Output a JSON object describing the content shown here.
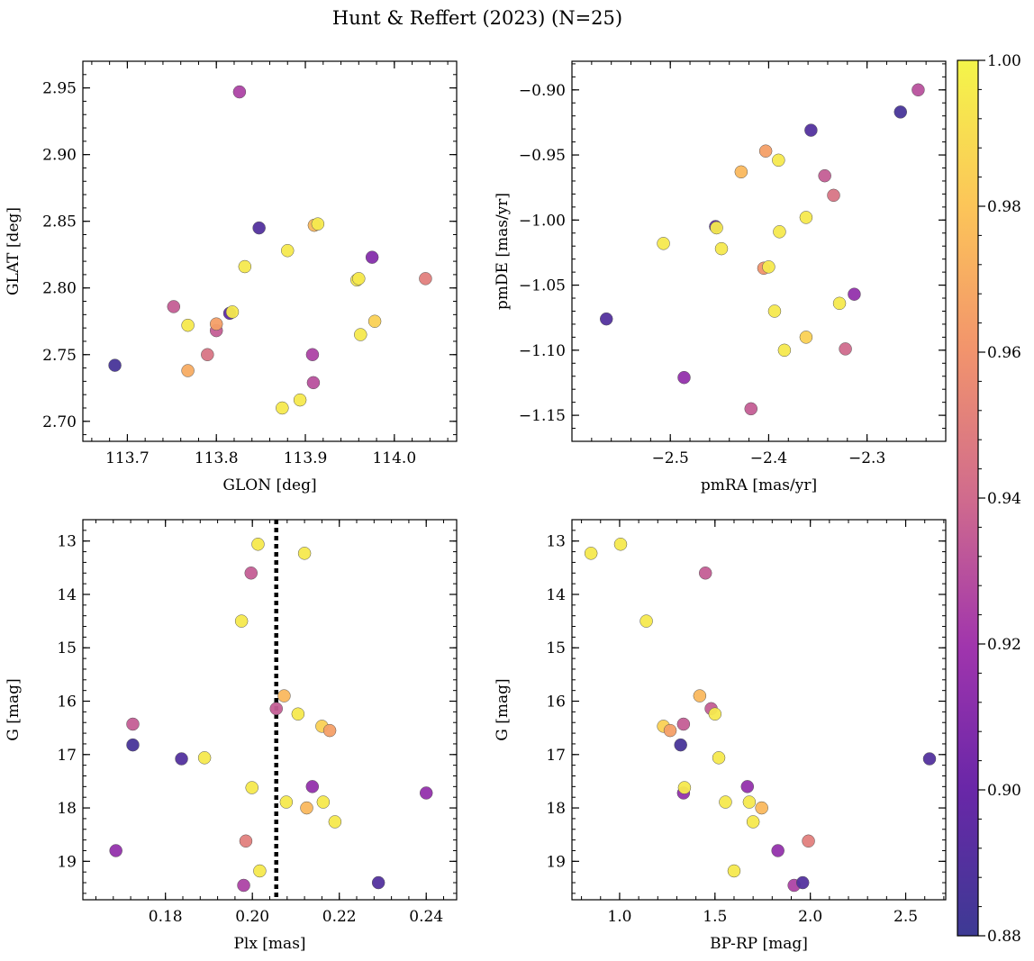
{
  "title": "Hunt & Reffert (2023) (N=25)",
  "colorbar": {
    "min": 0.88,
    "max": 1.0,
    "ticks": [
      0.88,
      0.9,
      0.92,
      0.94,
      0.96,
      0.98,
      1.0
    ],
    "tick_labels": [
      "0.88",
      "0.90",
      "0.92",
      "0.94",
      "0.96",
      "0.98",
      "1.00"
    ],
    "colormap": "plasma"
  },
  "chart_data": [
    {
      "type": "scatter",
      "xlabel": "GLON [deg]",
      "ylabel": "GLAT [deg]",
      "xlim": [
        113.65,
        114.07
      ],
      "ylim": [
        2.685,
        2.97
      ],
      "xticks": [
        113.7,
        113.8,
        113.9,
        114.0
      ],
      "xtick_labels": [
        "113.7",
        "113.8",
        "113.9",
        "114.0"
      ],
      "yticks": [
        2.7,
        2.75,
        2.8,
        2.85,
        2.9,
        2.95
      ],
      "ytick_labels": [
        "2.70",
        "2.75",
        "2.80",
        "2.85",
        "2.90",
        "2.95"
      ],
      "points": [
        {
          "x": 113.686,
          "y": 2.742,
          "c": 0.885
        },
        {
          "x": 113.752,
          "y": 2.786,
          "c": 0.935
        },
        {
          "x": 113.768,
          "y": 2.772,
          "c": 0.995
        },
        {
          "x": 113.768,
          "y": 2.738,
          "c": 0.97
        },
        {
          "x": 113.79,
          "y": 2.75,
          "c": 0.945
        },
        {
          "x": 113.8,
          "y": 2.768,
          "c": 0.935
        },
        {
          "x": 113.8,
          "y": 2.773,
          "c": 0.965
        },
        {
          "x": 113.815,
          "y": 2.781,
          "c": 0.895
        },
        {
          "x": 113.818,
          "y": 2.782,
          "c": 0.995
        },
        {
          "x": 113.826,
          "y": 2.947,
          "c": 0.925
        },
        {
          "x": 113.832,
          "y": 2.816,
          "c": 0.995
        },
        {
          "x": 113.848,
          "y": 2.845,
          "c": 0.89
        },
        {
          "x": 113.874,
          "y": 2.71,
          "c": 0.995
        },
        {
          "x": 113.88,
          "y": 2.828,
          "c": 0.995
        },
        {
          "x": 113.894,
          "y": 2.716,
          "c": 0.995
        },
        {
          "x": 113.908,
          "y": 2.75,
          "c": 0.925
        },
        {
          "x": 113.909,
          "y": 2.729,
          "c": 0.93
        },
        {
          "x": 113.91,
          "y": 2.847,
          "c": 0.975
        },
        {
          "x": 113.914,
          "y": 2.848,
          "c": 0.995
        },
        {
          "x": 113.958,
          "y": 2.806,
          "c": 0.995
        },
        {
          "x": 113.96,
          "y": 2.807,
          "c": 0.995
        },
        {
          "x": 113.962,
          "y": 2.765,
          "c": 0.995
        },
        {
          "x": 113.975,
          "y": 2.823,
          "c": 0.91
        },
        {
          "x": 113.978,
          "y": 2.775,
          "c": 0.985
        },
        {
          "x": 114.035,
          "y": 2.807,
          "c": 0.95
        }
      ]
    },
    {
      "type": "scatter",
      "xlabel": "pmRA [mas/yr]",
      "ylabel": "pmDE [mas/yr]",
      "xlim": [
        -2.6,
        -2.22
      ],
      "ylim": [
        -1.17,
        -0.878
      ],
      "xticks": [
        -2.5,
        -2.4,
        -2.3
      ],
      "xtick_labels": [
        "−2.5",
        "−2.4",
        "−2.3"
      ],
      "yticks": [
        -1.15,
        -1.1,
        -1.05,
        -1.0,
        -0.95,
        -0.9
      ],
      "ytick_labels": [
        "−1.15",
        "−1.10",
        "−1.05",
        "−1.00",
        "−0.95",
        "−0.90"
      ],
      "points": [
        {
          "x": -2.565,
          "y": -1.076,
          "c": 0.89
        },
        {
          "x": -2.507,
          "y": -1.018,
          "c": 0.995
        },
        {
          "x": -2.486,
          "y": -1.121,
          "c": 0.915
        },
        {
          "x": -2.454,
          "y": -1.005,
          "c": 0.895
        },
        {
          "x": -2.453,
          "y": -1.006,
          "c": 0.995
        },
        {
          "x": -2.448,
          "y": -1.022,
          "c": 0.995
        },
        {
          "x": -2.428,
          "y": -0.963,
          "c": 0.975
        },
        {
          "x": -2.418,
          "y": -1.145,
          "c": 0.935
        },
        {
          "x": -2.405,
          "y": -1.037,
          "c": 0.96
        },
        {
          "x": -2.403,
          "y": -0.947,
          "c": 0.965
        },
        {
          "x": -2.4,
          "y": -1.036,
          "c": 0.995
        },
        {
          "x": -2.394,
          "y": -1.07,
          "c": 0.995
        },
        {
          "x": -2.39,
          "y": -0.954,
          "c": 0.995
        },
        {
          "x": -2.389,
          "y": -1.009,
          "c": 0.995
        },
        {
          "x": -2.384,
          "y": -1.1,
          "c": 0.995
        },
        {
          "x": -2.362,
          "y": -0.998,
          "c": 0.995
        },
        {
          "x": -2.362,
          "y": -1.09,
          "c": 0.985
        },
        {
          "x": -2.357,
          "y": -0.931,
          "c": 0.89
        },
        {
          "x": -2.343,
          "y": -0.966,
          "c": 0.935
        },
        {
          "x": -2.334,
          "y": -0.981,
          "c": 0.945
        },
        {
          "x": -2.328,
          "y": -1.064,
          "c": 0.995
        },
        {
          "x": -2.322,
          "y": -1.099,
          "c": 0.94
        },
        {
          "x": -2.313,
          "y": -1.057,
          "c": 0.915
        },
        {
          "x": -2.266,
          "y": -0.917,
          "c": 0.885
        },
        {
          "x": -2.248,
          "y": -0.9,
          "c": 0.93
        }
      ]
    },
    {
      "type": "scatter",
      "xlabel": "Plx [mas]",
      "ylabel": "G [mag]",
      "xlim": [
        0.161,
        0.247
      ],
      "ylim": [
        19.72,
        12.6
      ],
      "inverted_y": true,
      "vline": 0.2055,
      "xticks": [
        0.18,
        0.2,
        0.22,
        0.24
      ],
      "xtick_labels": [
        "0.18",
        "0.20",
        "0.22",
        "0.24"
      ],
      "yticks": [
        13,
        14,
        15,
        16,
        17,
        18,
        19
      ],
      "ytick_labels": [
        "13",
        "14",
        "15",
        "16",
        "17",
        "18",
        "19"
      ],
      "points": [
        {
          "x": 0.1686,
          "y": 18.8,
          "c": 0.915
        },
        {
          "x": 0.1725,
          "y": 16.43,
          "c": 0.935
        },
        {
          "x": 0.1725,
          "y": 16.82,
          "c": 0.885
        },
        {
          "x": 0.1837,
          "y": 17.08,
          "c": 0.89
        },
        {
          "x": 0.189,
          "y": 17.06,
          "c": 0.995
        },
        {
          "x": 0.1975,
          "y": 14.5,
          "c": 0.995
        },
        {
          "x": 0.198,
          "y": 19.45,
          "c": 0.925
        },
        {
          "x": 0.1985,
          "y": 18.62,
          "c": 0.95
        },
        {
          "x": 0.1997,
          "y": 13.6,
          "c": 0.935
        },
        {
          "x": 0.1999,
          "y": 17.62,
          "c": 0.995
        },
        {
          "x": 0.2013,
          "y": 13.06,
          "c": 0.995
        },
        {
          "x": 0.2017,
          "y": 19.18,
          "c": 0.995
        },
        {
          "x": 0.2055,
          "y": 16.14,
          "c": 0.935
        },
        {
          "x": 0.2073,
          "y": 15.9,
          "c": 0.975
        },
        {
          "x": 0.2078,
          "y": 17.89,
          "c": 0.995
        },
        {
          "x": 0.2105,
          "y": 16.24,
          "c": 0.995
        },
        {
          "x": 0.212,
          "y": 13.23,
          "c": 0.995
        },
        {
          "x": 0.2125,
          "y": 18.0,
          "c": 0.975
        },
        {
          "x": 0.2138,
          "y": 17.6,
          "c": 0.915
        },
        {
          "x": 0.216,
          "y": 16.47,
          "c": 0.985
        },
        {
          "x": 0.2163,
          "y": 17.89,
          "c": 0.995
        },
        {
          "x": 0.2178,
          "y": 16.55,
          "c": 0.965
        },
        {
          "x": 0.219,
          "y": 18.26,
          "c": 0.995
        },
        {
          "x": 0.229,
          "y": 19.4,
          "c": 0.89
        },
        {
          "x": 0.24,
          "y": 17.72,
          "c": 0.915
        }
      ]
    },
    {
      "type": "scatter",
      "xlabel": "BP-RP [mag]",
      "ylabel": "G [mag]",
      "xlim": [
        0.75,
        2.71
      ],
      "ylim": [
        19.72,
        12.6
      ],
      "inverted_y": true,
      "xticks": [
        1.0,
        1.5,
        2.0,
        2.5
      ],
      "xtick_labels": [
        "1.0",
        "1.5",
        "2.0",
        "2.5"
      ],
      "yticks": [
        13,
        14,
        15,
        16,
        17,
        18,
        19
      ],
      "ytick_labels": [
        "13",
        "14",
        "15",
        "16",
        "17",
        "18",
        "19"
      ],
      "points": [
        {
          "x": 0.85,
          "y": 13.23,
          "c": 0.995
        },
        {
          "x": 1.005,
          "y": 13.06,
          "c": 0.995
        },
        {
          "x": 1.14,
          "y": 14.5,
          "c": 0.995
        },
        {
          "x": 1.23,
          "y": 16.47,
          "c": 0.985
        },
        {
          "x": 1.265,
          "y": 16.55,
          "c": 0.965
        },
        {
          "x": 1.32,
          "y": 16.82,
          "c": 0.885
        },
        {
          "x": 1.335,
          "y": 16.43,
          "c": 0.935
        },
        {
          "x": 1.335,
          "y": 17.72,
          "c": 0.915
        },
        {
          "x": 1.34,
          "y": 17.62,
          "c": 0.995
        },
        {
          "x": 1.42,
          "y": 15.9,
          "c": 0.975
        },
        {
          "x": 1.45,
          "y": 13.6,
          "c": 0.935
        },
        {
          "x": 1.48,
          "y": 16.14,
          "c": 0.935
        },
        {
          "x": 1.5,
          "y": 16.24,
          "c": 0.995
        },
        {
          "x": 1.52,
          "y": 17.06,
          "c": 0.995
        },
        {
          "x": 1.555,
          "y": 17.89,
          "c": 0.995
        },
        {
          "x": 1.6,
          "y": 19.18,
          "c": 0.995
        },
        {
          "x": 1.67,
          "y": 17.6,
          "c": 0.915
        },
        {
          "x": 1.68,
          "y": 17.89,
          "c": 0.995
        },
        {
          "x": 1.7,
          "y": 18.26,
          "c": 0.995
        },
        {
          "x": 1.745,
          "y": 18.0,
          "c": 0.975
        },
        {
          "x": 1.83,
          "y": 18.8,
          "c": 0.915
        },
        {
          "x": 1.915,
          "y": 19.45,
          "c": 0.925
        },
        {
          "x": 1.96,
          "y": 19.4,
          "c": 0.89
        },
        {
          "x": 1.99,
          "y": 18.62,
          "c": 0.95
        },
        {
          "x": 2.625,
          "y": 17.08,
          "c": 0.89
        }
      ]
    }
  ]
}
